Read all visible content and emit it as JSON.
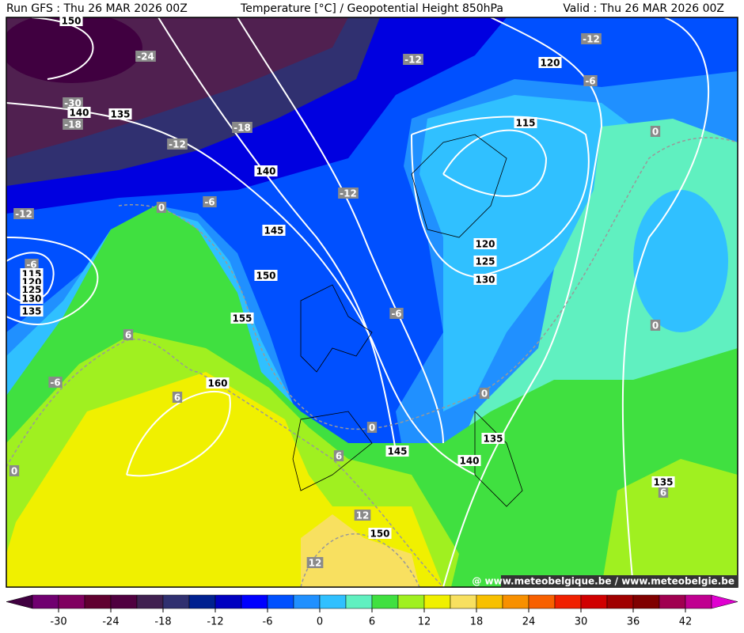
{
  "header": {
    "left": "Run GFS : Thu 26 MAR 2026 00Z",
    "center": "Temperature [°C] / Geopotential Height 850hPa",
    "right": "Valid : Thu 26 MAR 2026 00Z"
  },
  "height_labels": [
    150,
    140,
    135,
    140,
    145,
    150,
    155,
    160,
    120,
    115,
    120,
    125,
    130,
    115,
    120,
    125,
    130,
    135,
    135,
    140,
    145,
    150,
    135
  ],
  "temperature_labels": [
    -24,
    -30,
    -18,
    -12,
    -18,
    -12,
    -12,
    -6,
    0,
    -12,
    -6,
    0,
    -12,
    -6,
    -6,
    0,
    6,
    6,
    -6,
    0,
    0,
    0,
    6,
    12,
    12,
    6
  ],
  "colorbar": {
    "range": [
      -36,
      48
    ],
    "ticks": [
      -30,
      -24,
      -18,
      -12,
      -6,
      0,
      6,
      12,
      18,
      24,
      30,
      36,
      42
    ],
    "colors": [
      "#400040",
      "#700070",
      "#800060",
      "#600030",
      "#500040",
      "#402050",
      "#303070",
      "#002090",
      "#0000c0",
      "#0000ff",
      "#0050ff",
      "#2090ff",
      "#30c0ff",
      "#60f0c0",
      "#40e040",
      "#a0f020",
      "#f0f000",
      "#f8e060",
      "#f8c000",
      "#f89000",
      "#f86000",
      "#f02000",
      "#d00000",
      "#a00000",
      "#800000",
      "#a00050",
      "#c00090",
      "#e000d0"
    ]
  },
  "watermark": "@ www.meteobelgique.be / www.meteobelgie.be"
}
